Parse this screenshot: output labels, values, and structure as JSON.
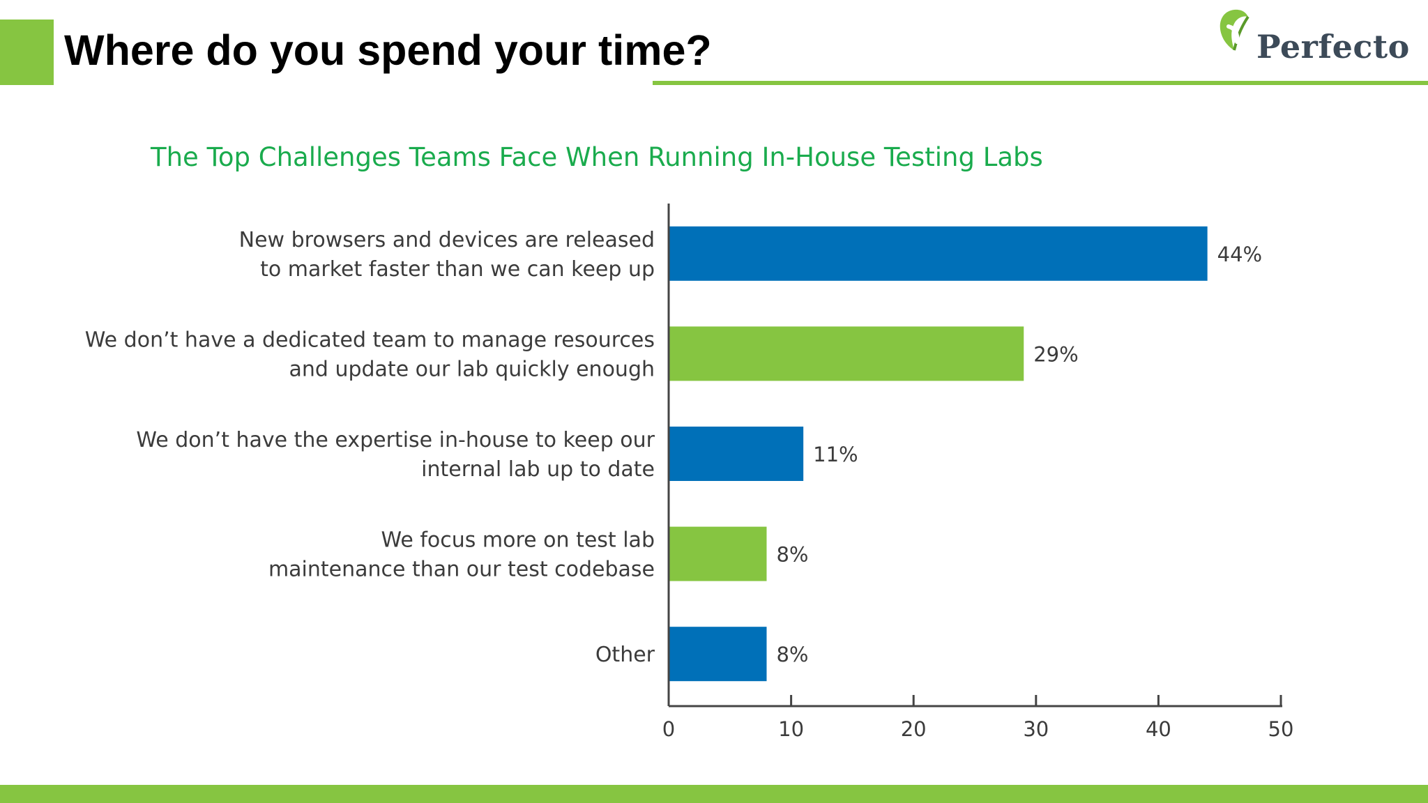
{
  "slide": {
    "title": "Where do you spend your time?",
    "logo_text": "Perfecto",
    "accent_color": "#86c541"
  },
  "chart_data": {
    "type": "bar",
    "orientation": "horizontal",
    "title": "The Top Challenges Teams Face When Running In-House Testing Labs",
    "categories": [
      [
        "New browsers and devices are released",
        "to market faster than we can keep up"
      ],
      [
        "We don’t have a dedicated team to manage resources",
        "and update our lab quickly enough"
      ],
      [
        "We don’t have the expertise in-house to keep our",
        "internal lab up to date"
      ],
      [
        "We focus more on test lab",
        "maintenance than our test codebase"
      ],
      [
        "Other"
      ]
    ],
    "values": [
      44,
      29,
      11,
      8,
      8
    ],
    "value_labels": [
      "44%",
      "29%",
      "11%",
      "8%",
      "8%"
    ],
    "bar_colors": [
      "#0070b8",
      "#86c541",
      "#0070b8",
      "#86c541",
      "#0070b8"
    ],
    "xlim": [
      0,
      50
    ],
    "xticks": [
      0,
      10,
      20,
      30,
      40,
      50
    ],
    "xlabel": "",
    "ylabel": "",
    "grid": false,
    "legend": "none"
  }
}
